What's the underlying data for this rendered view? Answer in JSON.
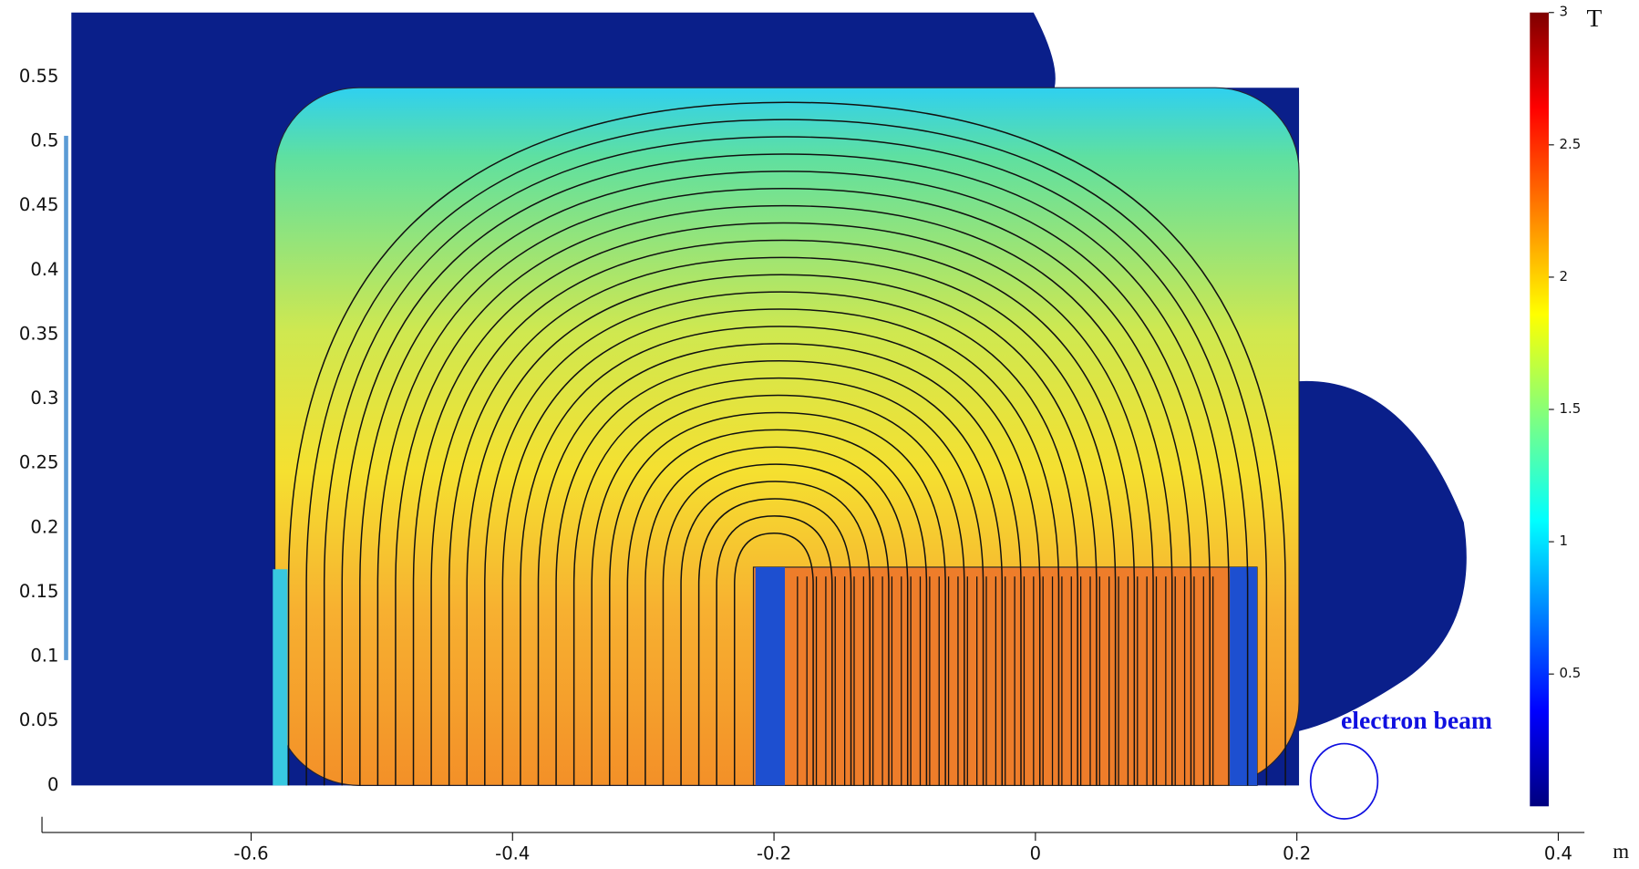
{
  "chart_data": {
    "type": "field",
    "xlim": [
      -0.76,
      0.42
    ],
    "xticks": [
      -0.6,
      -0.4,
      -0.2,
      0,
      0.2,
      0.4
    ],
    "ylim": [
      0,
      0.6
    ],
    "yticks": [
      0,
      0.05,
      0.1,
      0.15,
      0.2,
      0.25,
      0.3,
      0.35,
      0.4,
      0.45,
      0.5,
      0.55
    ],
    "x_unit": "m",
    "colorbar": {
      "clim": [
        0,
        3
      ],
      "ticks": [
        0.5,
        1,
        1.5,
        2,
        2.5,
        3
      ],
      "unit": "T"
    },
    "annotation": "electron beam"
  }
}
